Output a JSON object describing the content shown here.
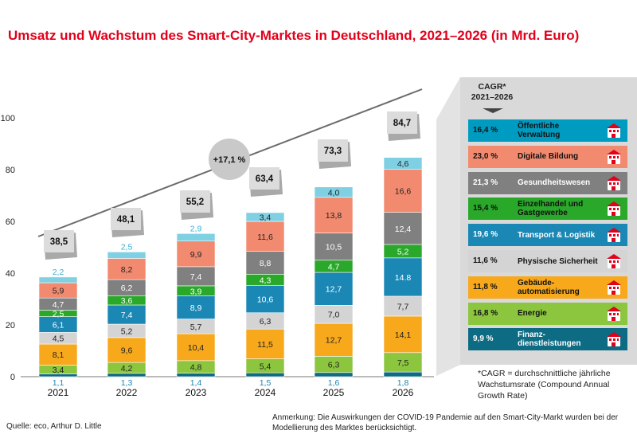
{
  "title": "Umsatz und Wachstum des Smart-City-Marktes in Deutschland, 2021–2026 (in Mrd. Euro)",
  "source": "Quelle: eco, Arthur D. Little",
  "note": "Anmerkung: Die Auswirkungen der COVID-19 Pandemie auf den Smart-City-Markt wurden bei der Modellierung des Marktes berücksichtigt.",
  "footnote": "*CAGR = durchschnittliche jährliche Wachstumsrate (Compound Annual Growth Rate)",
  "cagr_header": {
    "line1": "CAGR*",
    "line2": "2021–2026"
  },
  "overall_cagr": "+17,1 %",
  "colors": {
    "oeffentliche": "#009bc0",
    "bildung": "#f28a6f",
    "gesundheit": "#808080",
    "einzelhandel": "#2aa82a",
    "transport": "#1a87b5",
    "sicherheit": "#d4d4d4",
    "gebaeude": "#f7a81b",
    "energie": "#8cc63f",
    "finanz": "#0e6b84",
    "top": "#7fd0e3"
  },
  "chart_data": {
    "type": "bar",
    "stacked": true,
    "categories": [
      "2021",
      "2022",
      "2023",
      "2024",
      "2025",
      "2026"
    ],
    "ylim": [
      0,
      100
    ],
    "yticks": [
      0,
      20,
      40,
      60,
      80,
      100
    ],
    "totals": [
      "38,5",
      "48,1",
      "55,2",
      "63,4",
      "73,3",
      "84,7"
    ],
    "series": [
      {
        "name": "Finanzdienstleistungen",
        "cagr": "9,9 %",
        "color_key": "finanz",
        "values": [
          1.1,
          1.3,
          1.4,
          1.5,
          1.6,
          1.8
        ],
        "labels": [
          "1,1",
          "1,3",
          "1,4",
          "1,5",
          "1,6",
          "1,8"
        ]
      },
      {
        "name": "Energie",
        "cagr": "16,8 %",
        "color_key": "energie",
        "values": [
          3.4,
          4.2,
          4.8,
          5.4,
          6.3,
          7.5
        ],
        "labels": [
          "3,4",
          "4,2",
          "4,8",
          "5,4",
          "6,3",
          "7,5"
        ]
      },
      {
        "name": "Gebäudeautomatisierung",
        "cagr": "11,8 %",
        "color_key": "gebaeude",
        "values": [
          8.1,
          9.6,
          10.4,
          11.5,
          12.7,
          14.1
        ],
        "labels": [
          "8,1",
          "9,6",
          "10,4",
          "11,5",
          "12,7",
          "14,1"
        ]
      },
      {
        "name": "Physische Sicherheit",
        "cagr": "11,6 %",
        "color_key": "sicherheit",
        "values": [
          4.5,
          5.2,
          5.7,
          6.3,
          7.0,
          7.7
        ],
        "labels": [
          "4,5",
          "5,2",
          "5,7",
          "6,3",
          "7,0",
          "7,7"
        ]
      },
      {
        "name": "Transport & Logistik",
        "cagr": "19,6 %",
        "color_key": "transport",
        "values": [
          6.1,
          7.4,
          8.9,
          10.6,
          12.7,
          14.8
        ],
        "labels": [
          "6,1",
          "7,4",
          "8,9",
          "10,6",
          "12,7",
          "14.8"
        ]
      },
      {
        "name": "Einzelhandel und Gastgewerbe",
        "cagr": "15,4 %",
        "color_key": "einzelhandel",
        "values": [
          2.5,
          3.6,
          3.9,
          4.3,
          4.7,
          5.2
        ],
        "labels": [
          "2,5",
          "3,6",
          "3,9",
          "4,3",
          "4,7",
          "5,2"
        ]
      },
      {
        "name": "Gesundheitswesen",
        "cagr": "21,3 %",
        "color_key": "gesundheit",
        "values": [
          4.7,
          6.2,
          7.4,
          8.8,
          10.5,
          12.4
        ],
        "labels": [
          "4,7",
          "6,2",
          "7,4",
          "8,8",
          "10,5",
          "12,4"
        ]
      },
      {
        "name": "Digitale Bildung",
        "cagr": "23,0 %",
        "color_key": "bildung",
        "values": [
          5.9,
          8.2,
          9.9,
          11.6,
          13.8,
          16.6
        ],
        "labels": [
          "5,9",
          "8,2",
          "9,9",
          "11,6",
          "13,8",
          "16,6"
        ]
      },
      {
        "name": "Öffentliche Verwaltung",
        "cagr": "16,4 %",
        "color_key": "top",
        "values": [
          2.2,
          2.5,
          2.9,
          3.4,
          4.0,
          4.6
        ],
        "labels": [
          "2,2",
          "2,5",
          "2,9",
          "3,4",
          "4,0",
          "4,6"
        ]
      }
    ]
  },
  "legend": [
    {
      "key": "oeffentliche",
      "cagr": "16,4 %",
      "label": "Öffentliche Verwaltung",
      "icon": "government-building-icon"
    },
    {
      "key": "bildung",
      "cagr": "23,0 %",
      "label": "Digitale Bildung",
      "icon": "school-icon"
    },
    {
      "key": "gesundheit",
      "cagr": "21,3 %",
      "label": "Gesundheitswesen",
      "icon": "hospital-icon"
    },
    {
      "key": "einzelhandel",
      "cagr": "15,4 %",
      "label": "Einzelhandel und Gastgewerbe",
      "icon": "shop-icon"
    },
    {
      "key": "transport",
      "cagr": "19,6 %",
      "label": "Transport & Logistik",
      "icon": "truck-icon"
    },
    {
      "key": "sicherheit",
      "cagr": "11,6 %",
      "label": "Physische Sicherheit",
      "icon": "security-icon"
    },
    {
      "key": "gebaeude",
      "cagr": "11,8 %",
      "label": "Gebäude­automatisierung",
      "icon": "building-icon"
    },
    {
      "key": "energie",
      "cagr": "16,8 %",
      "label": "Energie",
      "icon": "energy-icon"
    },
    {
      "key": "finanz",
      "cagr": "9,9 %",
      "label": "Finanz­dienstleistungen",
      "icon": "finance-icon"
    }
  ]
}
